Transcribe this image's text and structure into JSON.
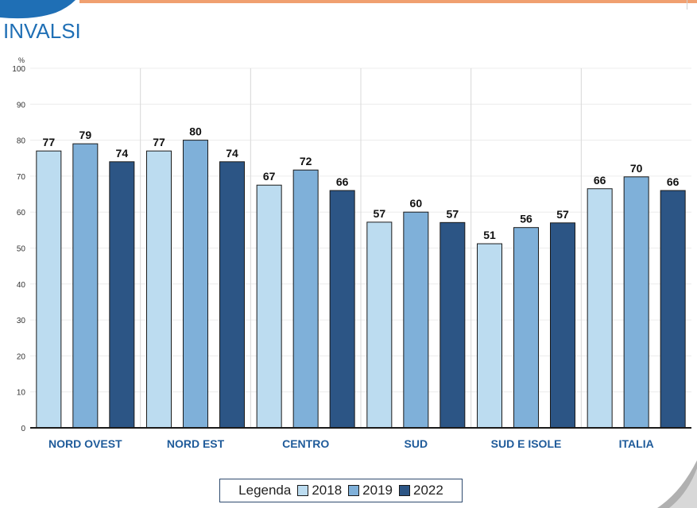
{
  "header": {
    "logo_text": "INVALSI"
  },
  "legend": {
    "title": "Legenda"
  },
  "chart_data": {
    "type": "bar",
    "ylabel": "%",
    "ylim": [
      0,
      100
    ],
    "yticks": [
      0,
      10,
      20,
      30,
      40,
      50,
      60,
      70,
      80,
      90,
      100
    ],
    "categories": [
      "NORD OVEST",
      "NORD EST",
      "CENTRO",
      "SUD",
      "SUD E ISOLE",
      "ITALIA"
    ],
    "series": [
      {
        "name": "2018",
        "color": "#bcdcf0",
        "values": [
          77,
          77,
          67,
          57,
          51,
          66
        ]
      },
      {
        "name": "2019",
        "color": "#7fb0d9",
        "values": [
          79,
          80,
          72,
          60,
          56,
          70
        ]
      },
      {
        "name": "2022",
        "color": "#2c5585",
        "values": [
          74,
          74,
          66,
          57,
          57,
          66
        ]
      }
    ],
    "heights": [
      [
        77,
        79,
        74
      ],
      [
        77,
        80,
        74
      ],
      [
        67.5,
        71.7,
        66
      ],
      [
        57.2,
        60,
        57.1
      ],
      [
        51.2,
        55.7,
        57
      ],
      [
        66.5,
        69.8,
        66
      ]
    ],
    "grid": true,
    "legend_position": "bottom-center",
    "category_label_color": "#1f5b9a"
  }
}
